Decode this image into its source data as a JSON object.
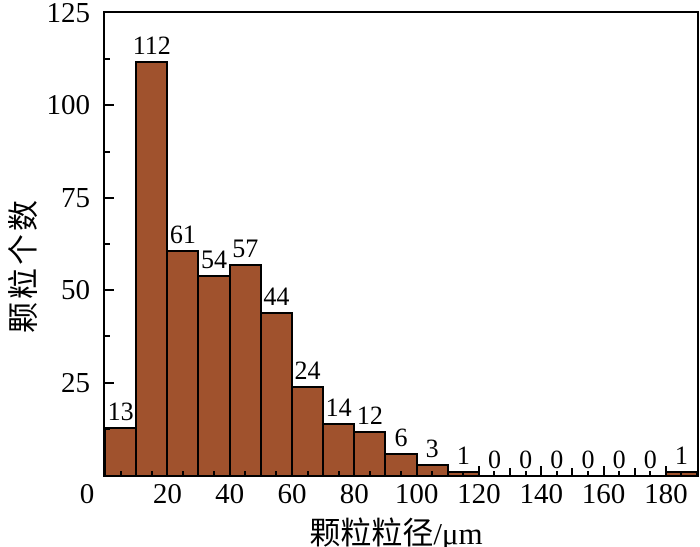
{
  "chart_data": {
    "type": "bar",
    "subtype": "histogram",
    "title": "",
    "xlabel": "颗粒粒径/μm",
    "ylabel": "颗粒个数",
    "bin_start": 0,
    "bin_width": 10,
    "counts": [
      13,
      112,
      61,
      54,
      57,
      44,
      24,
      14,
      12,
      6,
      3,
      1,
      0,
      0,
      0,
      0,
      0,
      0,
      1
    ],
    "bar_value_labels": [
      "13",
      "112",
      "61",
      "54",
      "57",
      "44",
      "24",
      "14",
      "12",
      "6",
      "3",
      "1",
      "0",
      "0",
      "0",
      "0",
      "0",
      "0",
      "1"
    ],
    "xlim": [
      0,
      190
    ],
    "ylim": [
      0,
      125
    ],
    "x_tick_labels": [
      "0",
      "20",
      "40",
      "60",
      "80",
      "100",
      "120",
      "140",
      "160",
      "180"
    ],
    "x_tick_values": [
      0,
      20,
      40,
      60,
      80,
      100,
      120,
      140,
      160,
      180
    ],
    "x_minor_step": 5,
    "y_tick_labels": [
      "25",
      "50",
      "75",
      "100",
      "125"
    ],
    "y_tick_values": [
      25,
      50,
      75,
      100,
      125
    ],
    "y_minor_step": 12.5,
    "grid": false,
    "legend": false,
    "colors": {
      "bar_fill": "#A0522D",
      "bar_border": "#000000",
      "axis": "#000000",
      "text": "#000000"
    }
  }
}
